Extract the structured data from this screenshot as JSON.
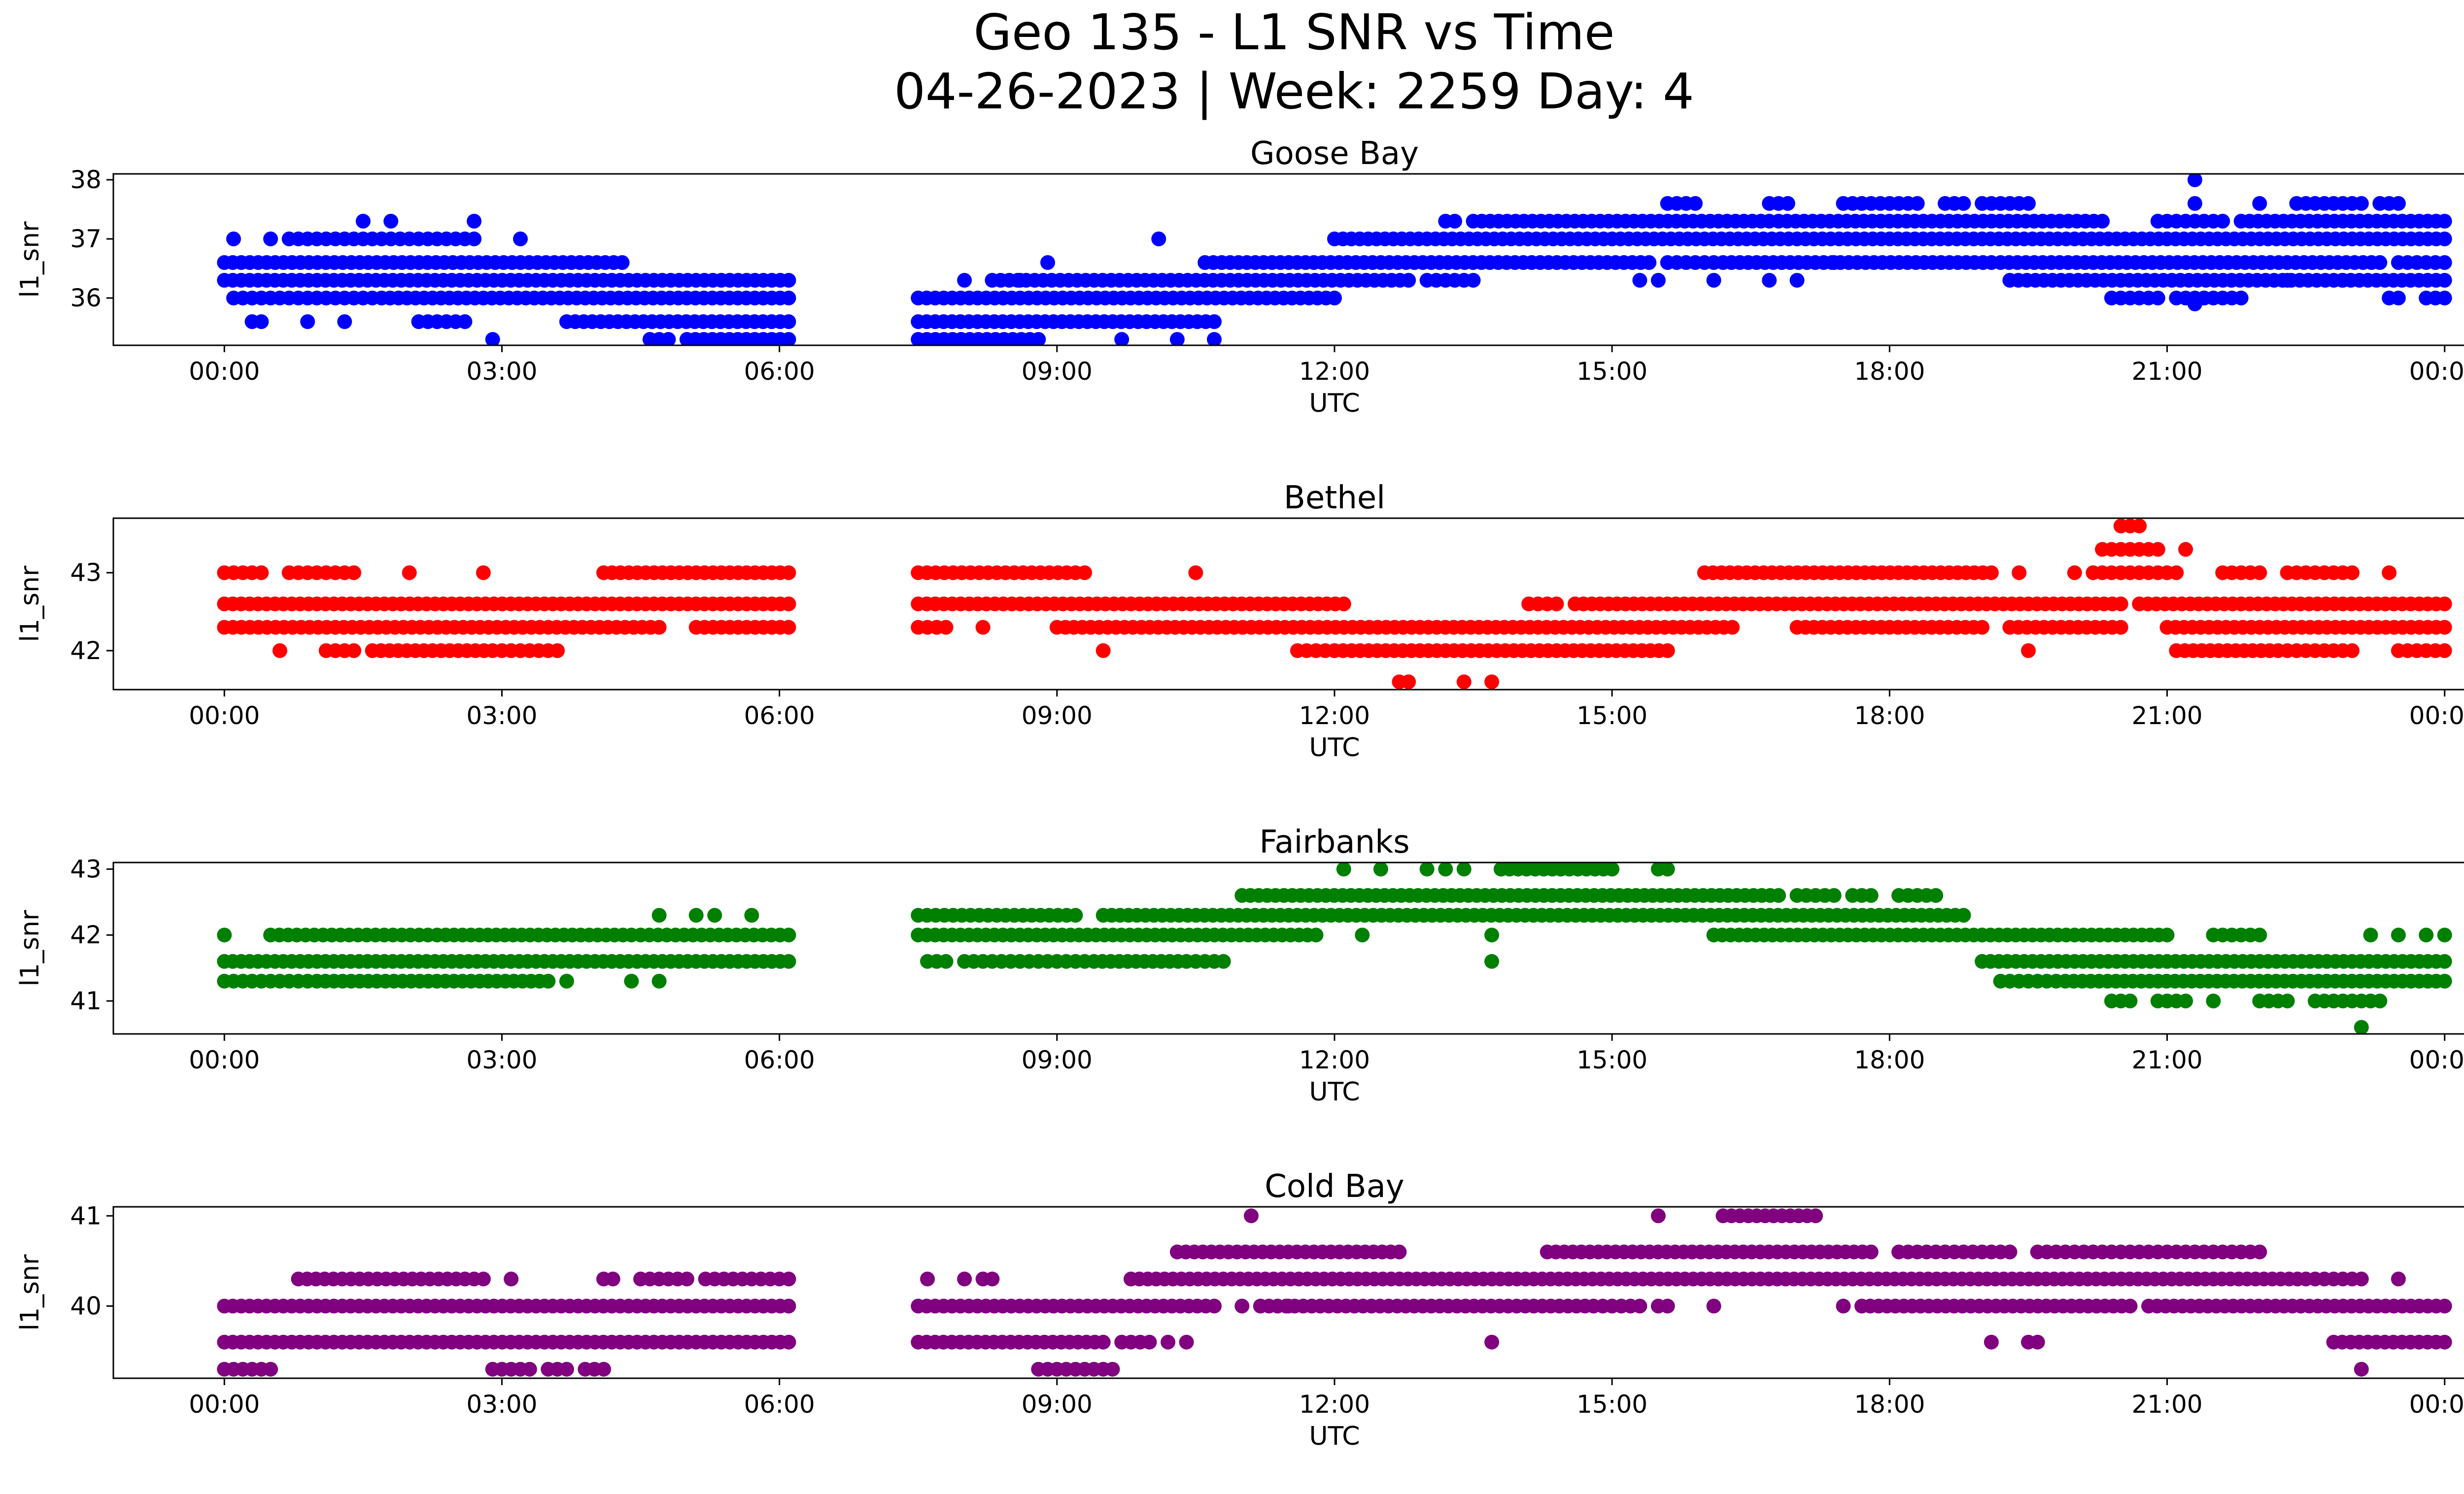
{
  "figure": {
    "title_line1": "Geo 135 - L1 SNR vs Time",
    "title_line2": "04-26-2023 | Week: 2259 Day: 4"
  },
  "chart_data": [
    {
      "type": "scatter",
      "title": "Goose Bay",
      "xlabel": "UTC",
      "ylabel": "l1_snr",
      "color": "#0000ff",
      "x_unit": "hours UTC",
      "xlim": [
        -1.2,
        25.2
      ],
      "ylim": [
        35.2,
        38.1
      ],
      "xticks": [
        "00:00",
        "03:00",
        "06:00",
        "09:00",
        "12:00",
        "15:00",
        "18:00",
        "21:00",
        "00:00"
      ],
      "yticks": [
        36,
        37,
        38
      ],
      "grid": false,
      "bands": [
        {
          "y": 36.3,
          "ranges": [
            [
              0.0,
              6.1
            ],
            [
              8.3,
              12.8
            ],
            [
              13.0,
              13.5
            ],
            [
              19.3,
              24.0
            ]
          ]
        },
        {
          "y": 36.0,
          "ranges": [
            [
              0.1,
              0.4
            ],
            [
              0.5,
              0.9
            ],
            [
              1.0,
              1.6
            ],
            [
              1.7,
              6.1
            ],
            [
              7.5,
              12.0
            ],
            [
              20.4,
              20.9
            ],
            [
              21.1,
              21.8
            ],
            [
              23.4,
              23.5
            ],
            [
              23.8,
              24.0
            ]
          ]
        },
        {
          "y": 36.6,
          "ranges": [
            [
              0.0,
              4.3
            ],
            [
              10.6,
              15.4
            ],
            [
              15.6,
              16.1
            ],
            [
              16.2,
              19.1
            ],
            [
              19.2,
              23.3
            ],
            [
              23.5,
              24.0
            ]
          ]
        },
        {
          "y": 37.0,
          "ranges": [
            [
              0.8,
              1.3
            ],
            [
              1.4,
              1.8
            ],
            [
              1.9,
              2.7
            ],
            [
              12.0,
              24.0
            ]
          ]
        },
        {
          "y": 37.3,
          "ranges": [
            [
              13.2,
              13.3
            ],
            [
              13.5,
              16.7
            ],
            [
              16.8,
              20.3
            ],
            [
              20.9,
              21.6
            ],
            [
              21.8,
              24.0
            ]
          ]
        },
        {
          "y": 35.6,
          "ranges": [
            [
              2.1,
              2.6
            ],
            [
              3.7,
              6.1
            ],
            [
              7.5,
              10.7
            ]
          ]
        },
        {
          "y": 35.3,
          "ranges": [
            [
              4.6,
              4.8
            ],
            [
              5.0,
              6.1
            ],
            [
              7.5,
              8.8
            ]
          ]
        },
        {
          "y": 37.6,
          "ranges": [
            [
              15.6,
              15.9
            ],
            [
              16.7,
              16.9
            ],
            [
              17.5,
              18.1
            ],
            [
              18.2,
              18.3
            ],
            [
              18.6,
              18.8
            ],
            [
              19.0,
              19.5
            ],
            [
              22.4,
              23.1
            ],
            [
              23.3,
              23.5
            ]
          ]
        }
      ],
      "points": [
        {
          "x": 0.1,
          "y": 37.0
        },
        {
          "x": 0.5,
          "y": 37.0
        },
        {
          "x": 0.7,
          "y": 37.0
        },
        {
          "x": 1.5,
          "y": 37.3
        },
        {
          "x": 1.8,
          "y": 37.3
        },
        {
          "x": 2.7,
          "y": 37.3
        },
        {
          "x": 3.2,
          "y": 37.0
        },
        {
          "x": 0.3,
          "y": 35.6
        },
        {
          "x": 0.4,
          "y": 35.6
        },
        {
          "x": 0.9,
          "y": 35.6
        },
        {
          "x": 1.3,
          "y": 35.6
        },
        {
          "x": 2.9,
          "y": 35.3
        },
        {
          "x": 8.0,
          "y": 36.3
        },
        {
          "x": 8.6,
          "y": 36.3
        },
        {
          "x": 8.9,
          "y": 36.6
        },
        {
          "x": 10.1,
          "y": 37.0
        },
        {
          "x": 9.7,
          "y": 35.3
        },
        {
          "x": 10.3,
          "y": 35.3
        },
        {
          "x": 10.7,
          "y": 35.3
        },
        {
          "x": 15.3,
          "y": 36.3
        },
        {
          "x": 15.5,
          "y": 36.3
        },
        {
          "x": 16.1,
          "y": 36.3
        },
        {
          "x": 16.7,
          "y": 36.3
        },
        {
          "x": 17.0,
          "y": 36.3
        },
        {
          "x": 17.4,
          "y": 36.6
        },
        {
          "x": 21.3,
          "y": 38.0
        },
        {
          "x": 21.3,
          "y": 37.6
        },
        {
          "x": 21.3,
          "y": 35.9
        },
        {
          "x": 22.3,
          "y": 36.3
        },
        {
          "x": 22.9,
          "y": 36.3
        },
        {
          "x": 22.0,
          "y": 37.6
        },
        {
          "x": 21.4,
          "y": 36.0
        }
      ]
    },
    {
      "type": "scatter",
      "title": "Bethel",
      "xlabel": "UTC",
      "ylabel": "l1_snr",
      "color": "#ff0000",
      "x_unit": "hours UTC",
      "xlim": [
        -1.2,
        25.2
      ],
      "ylim": [
        41.5,
        43.7
      ],
      "xticks": [
        "00:00",
        "03:00",
        "06:00",
        "09:00",
        "12:00",
        "15:00",
        "18:00",
        "21:00",
        "00:00"
      ],
      "yticks": [
        42,
        43
      ],
      "grid": false,
      "bands": [
        {
          "y": 42.6,
          "ranges": [
            [
              0.0,
              6.1
            ],
            [
              7.5,
              12.1
            ],
            [
              14.1,
              14.4
            ],
            [
              14.6,
              20.5
            ],
            [
              20.7,
              24.0
            ]
          ]
        },
        {
          "y": 42.3,
          "ranges": [
            [
              0.0,
              4.7
            ],
            [
              5.1,
              6.1
            ],
            [
              7.5,
              7.8
            ],
            [
              9.0,
              16.3
            ],
            [
              17.0,
              19.0
            ],
            [
              19.3,
              20.5
            ],
            [
              21.0,
              24.0
            ]
          ]
        },
        {
          "y": 42.0,
          "ranges": [
            [
              1.1,
              1.4
            ],
            [
              1.6,
              2.9
            ],
            [
              3.0,
              3.6
            ],
            [
              11.6,
              12.0
            ],
            [
              12.0,
              15.6
            ],
            [
              21.1,
              22.2
            ],
            [
              22.3,
              23.0
            ],
            [
              23.5,
              24.0
            ]
          ]
        },
        {
          "y": 43.0,
          "ranges": [
            [
              0.0,
              0.4
            ],
            [
              0.7,
              1.4
            ],
            [
              4.1,
              6.1
            ],
            [
              7.5,
              9.2
            ],
            [
              16.0,
              19.1
            ],
            [
              20.2,
              21.1
            ],
            [
              21.6,
              22.0
            ],
            [
              22.3,
              23.0
            ]
          ]
        },
        {
          "y": 43.3,
          "ranges": [
            [
              20.3,
              20.9
            ]
          ]
        },
        {
          "y": 43.6,
          "ranges": [
            [
              20.5,
              20.7
            ]
          ]
        }
      ],
      "points": [
        {
          "x": 0.6,
          "y": 42.0
        },
        {
          "x": 2.0,
          "y": 43.0
        },
        {
          "x": 2.8,
          "y": 43.0
        },
        {
          "x": 9.3,
          "y": 43.0
        },
        {
          "x": 10.5,
          "y": 43.0
        },
        {
          "x": 7.7,
          "y": 42.3
        },
        {
          "x": 8.2,
          "y": 42.3
        },
        {
          "x": 9.5,
          "y": 42.0
        },
        {
          "x": 12.7,
          "y": 41.6
        },
        {
          "x": 12.8,
          "y": 41.6
        },
        {
          "x": 13.4,
          "y": 41.6
        },
        {
          "x": 13.7,
          "y": 41.6
        },
        {
          "x": 19.4,
          "y": 43.0
        },
        {
          "x": 19.5,
          "y": 42.0
        },
        {
          "x": 21.2,
          "y": 43.3
        },
        {
          "x": 23.4,
          "y": 43.0
        },
        {
          "x": 20.0,
          "y": 43.0
        }
      ]
    },
    {
      "type": "scatter",
      "title": "Fairbanks",
      "xlabel": "UTC",
      "ylabel": "l1_snr",
      "color": "#008000",
      "x_unit": "hours UTC",
      "xlim": [
        -1.2,
        25.2
      ],
      "ylim": [
        40.5,
        43.1
      ],
      "xticks": [
        "00:00",
        "03:00",
        "06:00",
        "09:00",
        "12:00",
        "15:00",
        "18:00",
        "21:00",
        "00:00"
      ],
      "yticks": [
        41,
        42,
        43
      ],
      "grid": false,
      "bands": [
        {
          "y": 41.6,
          "ranges": [
            [
              0.0,
              6.1
            ],
            [
              7.6,
              7.8
            ],
            [
              8.0,
              8.6
            ],
            [
              8.7,
              9.3
            ],
            [
              9.4,
              10.4
            ],
            [
              10.5,
              10.8
            ],
            [
              19.0,
              24.0
            ]
          ]
        },
        {
          "y": 41.3,
          "ranges": [
            [
              0.0,
              0.9
            ],
            [
              1.0,
              3.5
            ],
            [
              19.2,
              19.5
            ],
            [
              19.6,
              19.8
            ],
            [
              19.9,
              24.0
            ]
          ]
        },
        {
          "y": 42.0,
          "ranges": [
            [
              0.5,
              2.2
            ],
            [
              2.3,
              4.4
            ],
            [
              4.5,
              6.1
            ],
            [
              7.5,
              11.8
            ],
            [
              16.1,
              19.0
            ],
            [
              19.0,
              21.0
            ],
            [
              21.5,
              22.0
            ]
          ]
        },
        {
          "y": 42.3,
          "ranges": [
            [
              7.5,
              9.2
            ],
            [
              9.5,
              18.8
            ]
          ]
        },
        {
          "y": 42.6,
          "ranges": [
            [
              11.0,
              16.8
            ],
            [
              17.0,
              17.4
            ],
            [
              17.6,
              17.8
            ],
            [
              18.1,
              18.5
            ]
          ]
        },
        {
          "y": 43.0,
          "ranges": [
            [
              13.8,
              15.0
            ]
          ]
        },
        {
          "y": 41.0,
          "ranges": [
            [
              20.4,
              20.6
            ],
            [
              20.9,
              21.2
            ],
            [
              22.0,
              22.3
            ],
            [
              22.6,
              23.3
            ]
          ]
        }
      ],
      "points": [
        {
          "x": 0.0,
          "y": 42.0
        },
        {
          "x": 4.7,
          "y": 42.3
        },
        {
          "x": 5.1,
          "y": 42.3
        },
        {
          "x": 5.3,
          "y": 42.3
        },
        {
          "x": 5.7,
          "y": 42.3
        },
        {
          "x": 4.4,
          "y": 41.3
        },
        {
          "x": 4.7,
          "y": 41.3
        },
        {
          "x": 3.7,
          "y": 41.3
        },
        {
          "x": 12.1,
          "y": 43.0
        },
        {
          "x": 12.5,
          "y": 43.0
        },
        {
          "x": 13.0,
          "y": 43.0
        },
        {
          "x": 13.2,
          "y": 43.0
        },
        {
          "x": 13.4,
          "y": 43.0
        },
        {
          "x": 15.5,
          "y": 43.0
        },
        {
          "x": 15.6,
          "y": 43.0
        },
        {
          "x": 12.3,
          "y": 42.0
        },
        {
          "x": 13.7,
          "y": 42.0
        },
        {
          "x": 13.7,
          "y": 41.6
        },
        {
          "x": 21.5,
          "y": 41.0
        },
        {
          "x": 23.1,
          "y": 40.6
        },
        {
          "x": 23.5,
          "y": 42.0
        },
        {
          "x": 23.8,
          "y": 42.0
        },
        {
          "x": 24.0,
          "y": 42.0
        },
        {
          "x": 23.2,
          "y": 42.0
        }
      ]
    },
    {
      "type": "scatter",
      "title": "Cold Bay",
      "xlabel": "UTC",
      "ylabel": "l1_snr",
      "color": "#800080",
      "x_unit": "hours UTC",
      "xlim": [
        -1.2,
        25.2
      ],
      "ylim": [
        39.2,
        41.1
      ],
      "xticks": [
        "00:00",
        "03:00",
        "06:00",
        "09:00",
        "12:00",
        "15:00",
        "18:00",
        "21:00",
        "00:00"
      ],
      "yticks": [
        40,
        41
      ],
      "grid": false,
      "bands": [
        {
          "y": 40.0,
          "ranges": [
            [
              0.0,
              6.1
            ],
            [
              7.5,
              10.7
            ],
            [
              11.2,
              14.8
            ],
            [
              14.9,
              15.3
            ],
            [
              17.7,
              20.6
            ],
            [
              20.8,
              24.0
            ]
          ]
        },
        {
          "y": 39.6,
          "ranges": [
            [
              0.0,
              6.1
            ],
            [
              7.5,
              9.5
            ],
            [
              9.7,
              10.0
            ],
            [
              22.8,
              24.0
            ]
          ]
        },
        {
          "y": 40.3,
          "ranges": [
            [
              0.8,
              2.6
            ],
            [
              2.7,
              2.8
            ],
            [
              4.1,
              4.2
            ],
            [
              4.5,
              5.0
            ],
            [
              5.2,
              6.1
            ],
            [
              9.8,
              22.5
            ],
            [
              22.6,
              23.1
            ]
          ]
        },
        {
          "y": 40.6,
          "ranges": [
            [
              10.3,
              12.7
            ],
            [
              14.3,
              17.8
            ],
            [
              18.1,
              18.9
            ],
            [
              19.0,
              19.3
            ],
            [
              19.6,
              20.0
            ],
            [
              20.1,
              21.0
            ],
            [
              21.1,
              21.5
            ],
            [
              21.6,
              22.0
            ]
          ]
        },
        {
          "y": 39.3,
          "ranges": [
            [
              0.0,
              0.5
            ],
            [
              2.9,
              3.3
            ],
            [
              3.5,
              3.7
            ],
            [
              3.9,
              4.1
            ],
            [
              8.8,
              9.6
            ]
          ]
        },
        {
          "y": 41.0,
          "ranges": [
            [
              16.2,
              17.2
            ]
          ]
        }
      ],
      "points": [
        {
          "x": 3.1,
          "y": 40.3
        },
        {
          "x": 7.6,
          "y": 40.3
        },
        {
          "x": 8.0,
          "y": 40.3
        },
        {
          "x": 8.2,
          "y": 40.3
        },
        {
          "x": 8.3,
          "y": 40.3
        },
        {
          "x": 10.2,
          "y": 39.6
        },
        {
          "x": 10.4,
          "y": 39.6
        },
        {
          "x": 11.1,
          "y": 41.0
        },
        {
          "x": 11.0,
          "y": 40.0
        },
        {
          "x": 11.5,
          "y": 40.0
        },
        {
          "x": 13.7,
          "y": 39.6
        },
        {
          "x": 15.5,
          "y": 41.0
        },
        {
          "x": 15.5,
          "y": 40.0
        },
        {
          "x": 16.1,
          "y": 40.0
        },
        {
          "x": 15.6,
          "y": 40.0
        },
        {
          "x": 19.1,
          "y": 39.6
        },
        {
          "x": 19.5,
          "y": 39.6
        },
        {
          "x": 19.6,
          "y": 39.6
        },
        {
          "x": 19.3,
          "y": 40.6
        },
        {
          "x": 23.1,
          "y": 39.3
        },
        {
          "x": 23.5,
          "y": 40.3
        },
        {
          "x": 17.5,
          "y": 40.0
        }
      ]
    }
  ]
}
